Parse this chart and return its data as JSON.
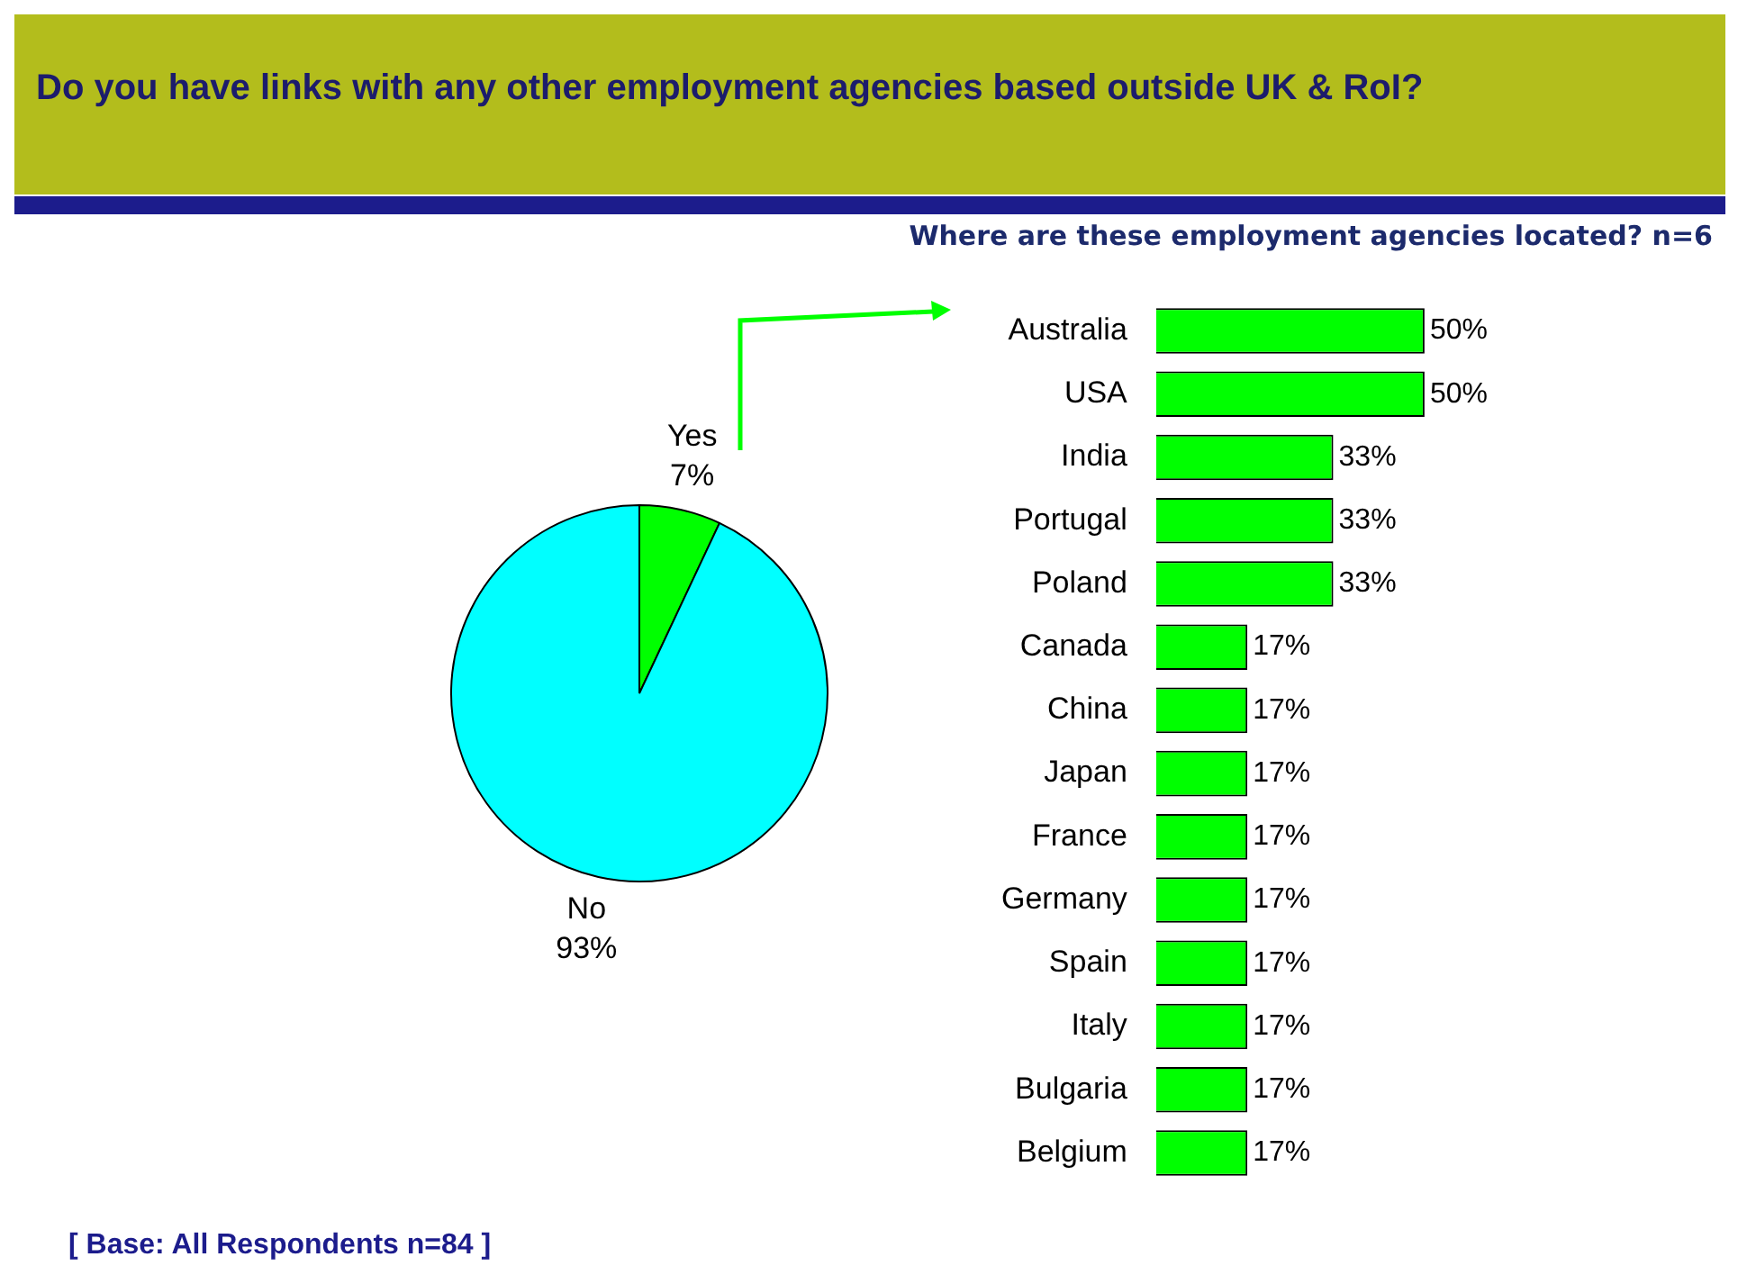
{
  "chart_data": [
    {
      "type": "pie",
      "title": "Do you have links with any other employment agencies based outside UK & RoI?",
      "categories": [
        "Yes",
        "No"
      ],
      "values": [
        7,
        93
      ],
      "colors": [
        "#00ff00",
        "#00ffff"
      ],
      "value_labels": [
        "7%",
        "93%"
      ],
      "legend": false,
      "annotations": [
        "[ Base:  All Respondents n=84 ]"
      ]
    },
    {
      "type": "bar",
      "orientation": "horizontal",
      "title": "Where are these employment agencies located? n=6",
      "categories": [
        "Australia",
        "USA",
        "India",
        "Portugal",
        "Poland",
        "Canada",
        "China",
        "Japan",
        "France",
        "Germany",
        "Spain",
        "Italy",
        "Bulgaria",
        "Belgium"
      ],
      "values": [
        50,
        50,
        33,
        33,
        33,
        17,
        17,
        17,
        17,
        17,
        17,
        17,
        17,
        17
      ],
      "color": "#00ff00",
      "value_labels": [
        "50%",
        "50%",
        "33%",
        "33%",
        "33%",
        "17%",
        "17%",
        "17%",
        "17%",
        "17%",
        "17%",
        "17%",
        "17%",
        "17%"
      ],
      "legend": false,
      "tick_labels": "y",
      "grid": false
    }
  ]
}
